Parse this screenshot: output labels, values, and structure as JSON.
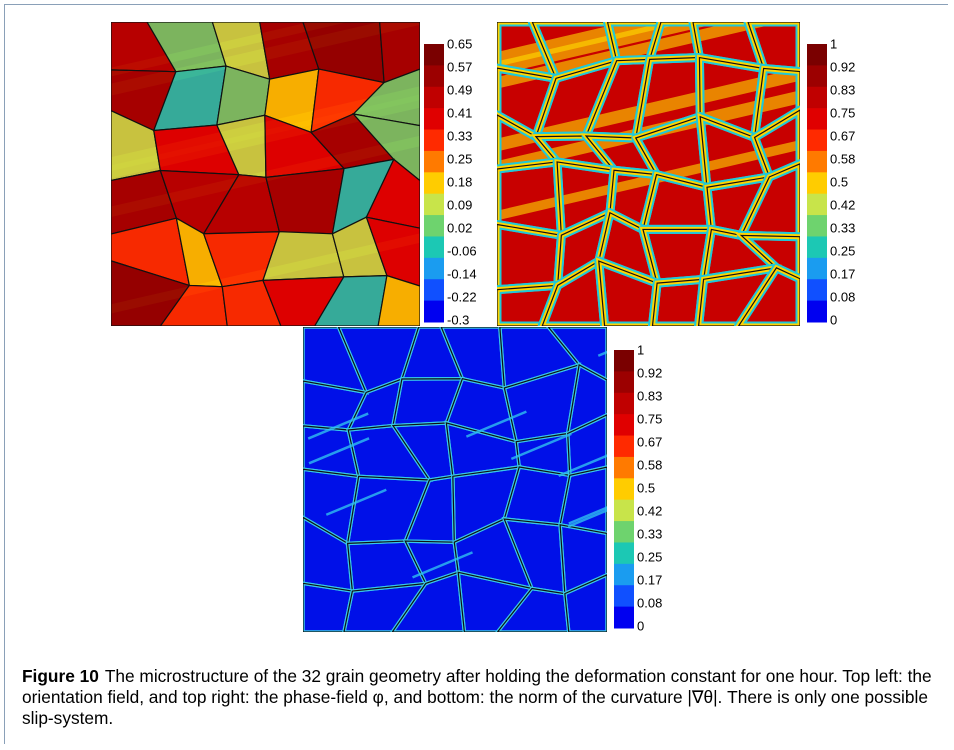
{
  "figure": {
    "panels": [
      {
        "colorbar": {
          "ticks": [
            "0.65",
            "0.57",
            "0.49",
            "0.41",
            "0.33",
            "0.25",
            "0.18",
            "0.09",
            "0.02",
            "-0.06",
            "-0.14",
            "-0.22",
            "-0.3"
          ]
        }
      },
      {
        "colorbar": {
          "ticks": [
            "1",
            "0.92",
            "0.83",
            "0.75",
            "0.67",
            "0.58",
            "0.5",
            "0.42",
            "0.33",
            "0.25",
            "0.17",
            "0.08",
            "0"
          ]
        }
      },
      {
        "colorbar": {
          "ticks": [
            "1",
            "0.92",
            "0.83",
            "0.75",
            "0.67",
            "0.58",
            "0.5",
            "0.42",
            "0.33",
            "0.25",
            "0.17",
            "0.08",
            "0"
          ]
        }
      }
    ],
    "caption": {
      "label": "Figure 10",
      "text": "The microstructure of the 32 grain geometry after holding the deformation constant for one hour. Top left: the orientation field, and top right: the phase-field φ, and bottom: the norm of the curvature |∇θ|. There is only one possible slip-system."
    }
  }
}
